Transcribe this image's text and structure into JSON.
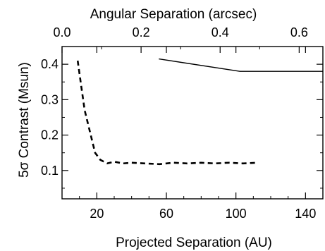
{
  "chart_data": {
    "type": "line",
    "xlabel": "Projected Separation (AU)",
    "x2label": "Angular Separation (arcsec)",
    "ylabel": "5σ Contrast (Msun)",
    "xlim": [
      0,
      150
    ],
    "x2lim": [
      0,
      0.66
    ],
    "ylim": [
      0.02,
      0.45
    ],
    "xticks": [
      20,
      60,
      100,
      140
    ],
    "xtick_labels": [
      "20",
      "60",
      "100",
      "140"
    ],
    "x2ticks": [
      0.0,
      0.2,
      0.4,
      0.6
    ],
    "x2tick_labels": [
      "0.0",
      "0.2",
      "0.4",
      "0.6"
    ],
    "yticks": [
      0.1,
      0.2,
      0.3,
      0.4
    ],
    "ytick_labels": [
      "0.1",
      "0.2",
      "0.3",
      "0.4"
    ],
    "grid": false,
    "series": [
      {
        "style": "dashed",
        "axis": "bottom",
        "x": [
          9,
          11,
          13,
          16,
          19,
          22,
          26,
          30,
          35,
          40,
          48,
          56,
          64,
          72,
          80,
          88,
          96,
          104,
          112
        ],
        "y": [
          0.41,
          0.34,
          0.27,
          0.21,
          0.15,
          0.13,
          0.12,
          0.125,
          0.12,
          0.122,
          0.12,
          0.118,
          0.122,
          0.12,
          0.122,
          0.12,
          0.122,
          0.12,
          0.122
        ]
      },
      {
        "style": "solid",
        "axis": "top",
        "x": [
          0.245,
          0.45,
          0.66
        ],
        "y": [
          0.415,
          0.38,
          0.38
        ]
      }
    ]
  }
}
